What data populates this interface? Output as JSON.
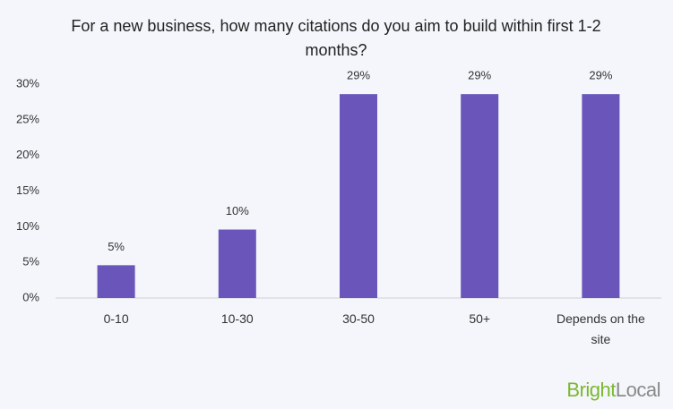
{
  "chart_data": {
    "type": "bar",
    "title": "For a new business, how many citations do you aim to build within first 1-2 months?",
    "categories": [
      "0-10",
      "10-30",
      "30-50",
      "50+",
      "Depends on the site"
    ],
    "values": [
      4.6,
      9.6,
      28.6,
      28.6,
      28.6
    ],
    "value_labels": [
      "5%",
      "10%",
      "29%",
      "29%",
      "29%"
    ],
    "color": "#6a55bb",
    "ylim": [
      0,
      30
    ],
    "yticks": [
      {
        "value": 0,
        "label": "0%"
      },
      {
        "value": 5,
        "label": "5%"
      },
      {
        "value": 10,
        "label": "10%"
      },
      {
        "value": 15,
        "label": "15%"
      },
      {
        "value": 20,
        "label": "20%"
      },
      {
        "value": 25,
        "label": "25%"
      },
      {
        "value": 30,
        "label": "30%"
      }
    ],
    "grid": false
  },
  "branding": {
    "part1": "Bright",
    "part2": "Local"
  }
}
